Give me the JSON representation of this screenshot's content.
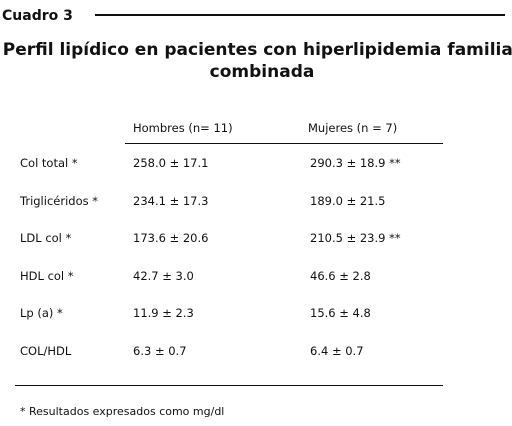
{
  "header": {
    "label": "Cuadro 3",
    "title": [
      "Perfil lipídico en pacientes con hiperlipidemia familiar",
      "combinada"
    ]
  },
  "table": {
    "columns": [
      "Hombres (n= 11)",
      "Mujeres (n = 7)"
    ],
    "rows": [
      [
        "Col total *",
        "258.0 ± 17.1",
        "290.3 ± 18.9 **"
      ],
      [
        "Triglicéridos *",
        "234.1 ± 17.3",
        "189.0 ± 21.5"
      ],
      [
        "LDL col *",
        "173.6 ± 20.6",
        "210.5 ± 23.9 **"
      ],
      [
        "HDL col *",
        "42.7 ± 3.0",
        "46.6 ± 2.8"
      ],
      [
        "Lp (a) *",
        "11.9 ± 2.3",
        "15.6 ± 4.8"
      ],
      [
        "COL/HDL",
        "6.3 ± 0.7",
        "6.4 ± 0.7"
      ]
    ]
  },
  "footnote": "* Resultados expresados como mg/dl"
}
